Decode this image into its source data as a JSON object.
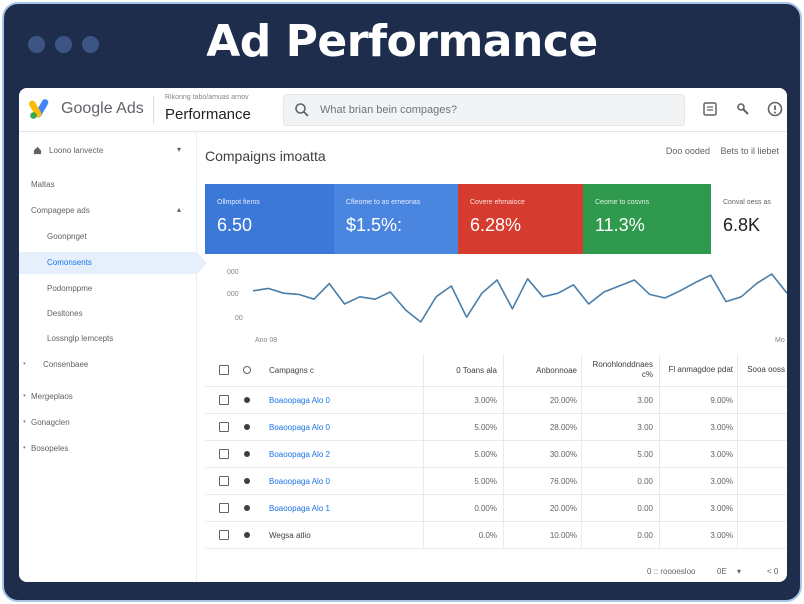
{
  "frame": {
    "title": "Ad Performance"
  },
  "topbar": {
    "brand": "Google Ads",
    "breadcrumb_small": "Rikonng tabo/amuas arnov",
    "breadcrumb_main": "Performance",
    "search_placeholder": "What brian bein compages?",
    "icons": [
      "report-icon",
      "tools-icon",
      "help-icon"
    ]
  },
  "sidebar": {
    "items": [
      {
        "label": "Loono lanvecte",
        "icon": "home-icon"
      },
      {
        "label": "Maltas"
      },
      {
        "label": "Compagepe ads"
      },
      {
        "label": "Goonpnget"
      },
      {
        "label": "Comonsents"
      },
      {
        "label": "Podomppme"
      },
      {
        "label": "Desltones"
      },
      {
        "label": "Lossnglp lemcepts"
      },
      {
        "label": "Consenbaee"
      },
      {
        "label": "Mergeplaos"
      },
      {
        "label": "Gonagclen"
      },
      {
        "label": "Bosopeles"
      }
    ]
  },
  "main": {
    "title": "Compaigns imoatta",
    "links": [
      "Doo ooded",
      "Bets to il liebet"
    ]
  },
  "tiles": [
    {
      "label": "Ollmpot fiems",
      "value": "6.50",
      "color": "#3b78d8"
    },
    {
      "label": "Cfleome to as erneonas",
      "value": "$1.5%:",
      "color": "#4a86e0"
    },
    {
      "label": "Covere ehmaioce",
      "value": "6.28%",
      "color": "#d63b2f"
    },
    {
      "label": "Ceome to cosvns",
      "value": "11.3%",
      "color": "#2f9a4e"
    },
    {
      "label": "Conval oess as",
      "value": "6.8K",
      "color": "#ffffff"
    }
  ],
  "chart_data": {
    "type": "line",
    "title": "",
    "xlabel": "",
    "ylabel": "",
    "y_ticks": [
      "000",
      "000",
      "00"
    ],
    "x_ticks": [
      "Ano 08",
      "Mo"
    ],
    "series": [
      {
        "values": [
          0.62,
          0.66,
          0.58,
          0.56,
          0.48,
          0.74,
          0.4,
          0.52,
          0.48,
          0.6,
          0.3,
          0.1,
          0.52,
          0.7,
          0.18,
          0.58,
          0.8,
          0.32,
          0.82,
          0.52,
          0.58,
          0.72,
          0.4,
          0.6,
          0.7,
          0.8,
          0.56,
          0.5,
          0.62,
          0.76,
          0.88,
          0.44,
          0.52,
          0.74,
          0.9,
          0.58
        ]
      }
    ],
    "ylim": [
      0,
      1
    ]
  },
  "table": {
    "headers": [
      "Campagns c",
      "0 Toans ala",
      "Anbonnoae",
      "Ronohlonddnaes c%",
      "Fl anmagdoe pdat",
      "Sooa ooss"
    ],
    "rows": [
      {
        "name": "Boaoopaga Alo 0",
        "c1": "3.00%",
        "c2": "20.00%",
        "c3": "3.00",
        "c4": "9.00%",
        "link": true
      },
      {
        "name": "Boaoopaga Alo 0",
        "c1": "5.00%",
        "c2": "28.00%",
        "c3": "3.00",
        "c4": "3.00%",
        "link": true
      },
      {
        "name": "Boaoopaga Alo 2",
        "c1": "5.00%",
        "c2": "30.00%",
        "c3": "5.00",
        "c4": "3.00%",
        "link": true
      },
      {
        "name": "Boaoopaga Alo 0",
        "c1": "5.00%",
        "c2": "76.00%",
        "c3": "0.00",
        "c4": "3.00%",
        "link": true
      },
      {
        "name": "Boaoopaga Alo 1",
        "c1": "0.00%",
        "c2": "20.00%",
        "c3": "0.00",
        "c4": "3.00%",
        "link": true
      },
      {
        "name": "Wegsa atlio",
        "c1": "0.0%",
        "c2": "10.00%",
        "c3": "0.00",
        "c4": "3.00%",
        "link": false
      }
    ]
  },
  "footer": {
    "pagination": "0 :: roooesloo",
    "page_size": "0E",
    "nav": "< 0"
  }
}
